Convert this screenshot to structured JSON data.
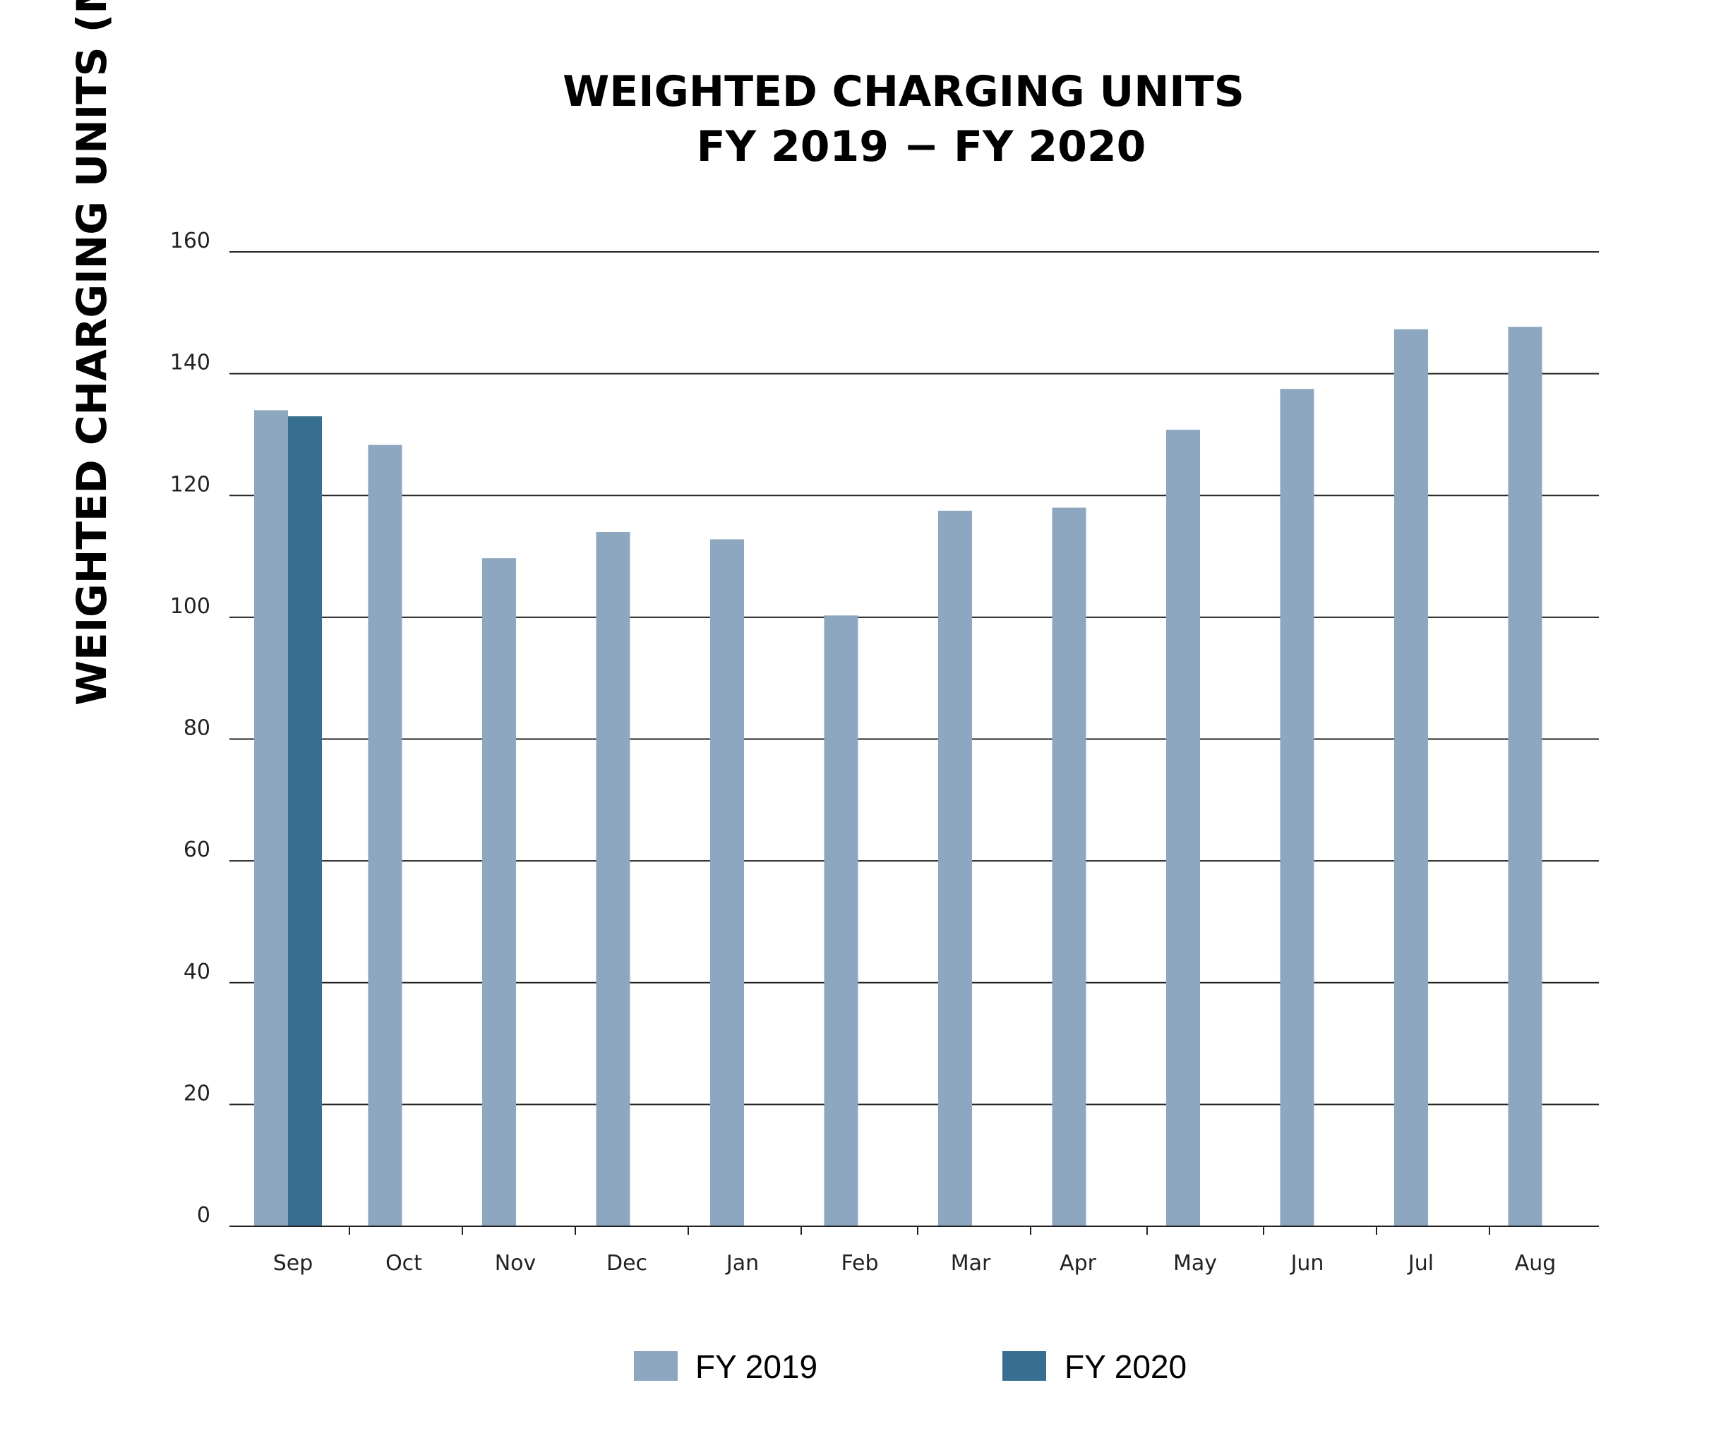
{
  "chart_data": {
    "type": "bar",
    "title": "WEIGHTED CHARGING UNITS",
    "subtitle": "FY 2019 − FY 2020",
    "xlabel": "",
    "ylabel": "WEIGHTED CHARGING UNITS (MILLIONS)",
    "ylim": [
      0,
      160
    ],
    "yticks": [
      "0",
      "20",
      "40",
      "60",
      "80",
      "100",
      "120",
      "140",
      "160"
    ],
    "grid": true,
    "legend_position": "bottom",
    "categories": [
      "Sep",
      "Oct",
      "Nov",
      "Dec",
      "Jan",
      "Feb",
      "Mar",
      "Apr",
      "May",
      "Jun",
      "Jul",
      "Aug"
    ],
    "series": [
      {
        "name": "FY 2019",
        "color": "#8ca7bf",
        "values": [
          134,
          128.3,
          109.7,
          114,
          112.8,
          100.3,
          117.5,
          118,
          130.8,
          137.5,
          147.3,
          147.7
        ]
      },
      {
        "name": "FY 2020",
        "color": "#386e90",
        "values": [
          133,
          null,
          null,
          null,
          null,
          null,
          null,
          null,
          null,
          null,
          null,
          null
        ]
      }
    ]
  }
}
